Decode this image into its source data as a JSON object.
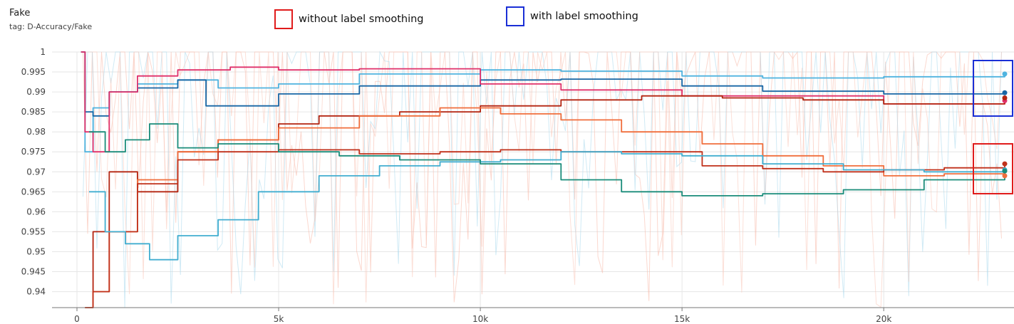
{
  "header": {
    "title": "Fake",
    "tag": "tag: D-Accuracy/Fake"
  },
  "legend": {
    "items": [
      {
        "label": "without label smoothing",
        "color": "#e01b1b"
      },
      {
        "label": "with label smoothing",
        "color": "#1a2fd6"
      }
    ]
  },
  "chart_data": {
    "type": "line",
    "title": "Fake",
    "xlabel": "",
    "ylabel": "",
    "xlim": [
      0,
      23000
    ],
    "ylim": [
      0.936,
      1.0
    ],
    "x_ticks": [
      0,
      5000,
      10000,
      15000,
      20000
    ],
    "x_tick_labels": [
      "0",
      "5k",
      "10k",
      "15k",
      "20k"
    ],
    "y_ticks": [
      0.94,
      0.945,
      0.95,
      0.955,
      0.96,
      0.965,
      0.97,
      0.975,
      0.98,
      0.985,
      0.99,
      0.995,
      1
    ],
    "y_tick_labels": [
      "0.94",
      "0.945",
      "0.95",
      "0.955",
      "0.96",
      "0.965",
      "0.97",
      "0.975",
      "0.98",
      "0.985",
      "0.99",
      "0.995",
      "1"
    ],
    "grid": true,
    "series": [
      {
        "group": "with label smoothing",
        "color": "#4fb3df",
        "x": [
          100,
          200,
          400,
          800,
          1500,
          2500,
          3500,
          5000,
          7000,
          10000,
          12000,
          15000,
          17000,
          20000,
          23000
        ],
        "y": [
          1.0,
          0.975,
          0.986,
          0.99,
          0.992,
          0.993,
          0.991,
          0.992,
          0.9945,
          0.9955,
          0.9952,
          0.994,
          0.9935,
          0.9938,
          0.9945
        ]
      },
      {
        "group": "with label smoothing",
        "color": "#1766a5",
        "x": [
          100,
          200,
          400,
          800,
          1500,
          2500,
          3200,
          5000,
          7000,
          10000,
          12000,
          15000,
          17000,
          20000,
          23000
        ],
        "y": [
          1.0,
          0.985,
          0.984,
          0.99,
          0.991,
          0.993,
          0.9865,
          0.9895,
          0.9915,
          0.993,
          0.9932,
          0.9915,
          0.9902,
          0.9895,
          0.9898
        ]
      },
      {
        "group": "with label smoothing",
        "color": "#e0306a",
        "x": [
          100,
          200,
          400,
          800,
          1500,
          2500,
          3800,
          5000,
          7000,
          10000,
          12000,
          15000,
          17000,
          20000,
          23000
        ],
        "y": [
          1.0,
          0.98,
          0.975,
          0.99,
          0.994,
          0.9955,
          0.9962,
          0.9955,
          0.9958,
          0.992,
          0.9905,
          0.989,
          0.989,
          0.987,
          0.9878
        ]
      },
      {
        "group": "with label smoothing",
        "color": "#b42410",
        "x": [
          200,
          400,
          800,
          1500,
          2500,
          3500,
          5000,
          6000,
          8000,
          10000,
          12000,
          14000,
          16000,
          18000,
          20000,
          23000
        ],
        "y": [
          0.936,
          0.955,
          0.97,
          0.965,
          0.975,
          0.978,
          0.982,
          0.984,
          0.985,
          0.9865,
          0.988,
          0.989,
          0.9885,
          0.988,
          0.987,
          0.9885
        ]
      },
      {
        "group": "without label smoothing",
        "color": "#f06e3c",
        "x": [
          200,
          400,
          800,
          1500,
          2500,
          3500,
          5000,
          7000,
          9000,
          10500,
          12000,
          13500,
          15500,
          17000,
          18500,
          20000,
          21500,
          23000
        ],
        "y": [
          0.936,
          0.94,
          0.955,
          0.968,
          0.975,
          0.978,
          0.981,
          0.984,
          0.986,
          0.9845,
          0.983,
          0.98,
          0.977,
          0.974,
          0.9715,
          0.969,
          0.9695,
          0.969
        ]
      },
      {
        "group": "without label smoothing",
        "color": "#c0301a",
        "x": [
          200,
          400,
          800,
          1500,
          2500,
          3500,
          5000,
          7000,
          9000,
          10500,
          12000,
          13500,
          15500,
          17000,
          18500,
          20000,
          21500,
          23000
        ],
        "y": [
          0.936,
          0.94,
          0.955,
          0.967,
          0.973,
          0.975,
          0.9755,
          0.9745,
          0.975,
          0.9755,
          0.975,
          0.975,
          0.9715,
          0.9708,
          0.97,
          0.9705,
          0.971,
          0.972
        ]
      },
      {
        "group": "without label smoothing",
        "color": "#42aed0",
        "x": [
          300,
          700,
          1200,
          1800,
          2500,
          3500,
          4500,
          6000,
          7500,
          9000,
          10500,
          12000,
          13500,
          15000,
          17000,
          19000,
          21000,
          23000
        ],
        "y": [
          0.965,
          0.955,
          0.952,
          0.948,
          0.954,
          0.958,
          0.965,
          0.969,
          0.9715,
          0.9725,
          0.973,
          0.975,
          0.9745,
          0.974,
          0.972,
          0.9705,
          0.97,
          0.9705
        ]
      },
      {
        "group": "without label smoothing",
        "color": "#1a8c7a",
        "x": [
          300,
          700,
          1200,
          1800,
          2500,
          3500,
          5000,
          6500,
          8000,
          10000,
          12000,
          13500,
          15000,
          17000,
          19000,
          21000,
          23000
        ],
        "y": [
          0.98,
          0.975,
          0.978,
          0.982,
          0.976,
          0.977,
          0.975,
          0.974,
          0.973,
          0.972,
          0.968,
          0.965,
          0.964,
          0.9645,
          0.9655,
          0.968,
          0.9702
        ]
      }
    ]
  }
}
